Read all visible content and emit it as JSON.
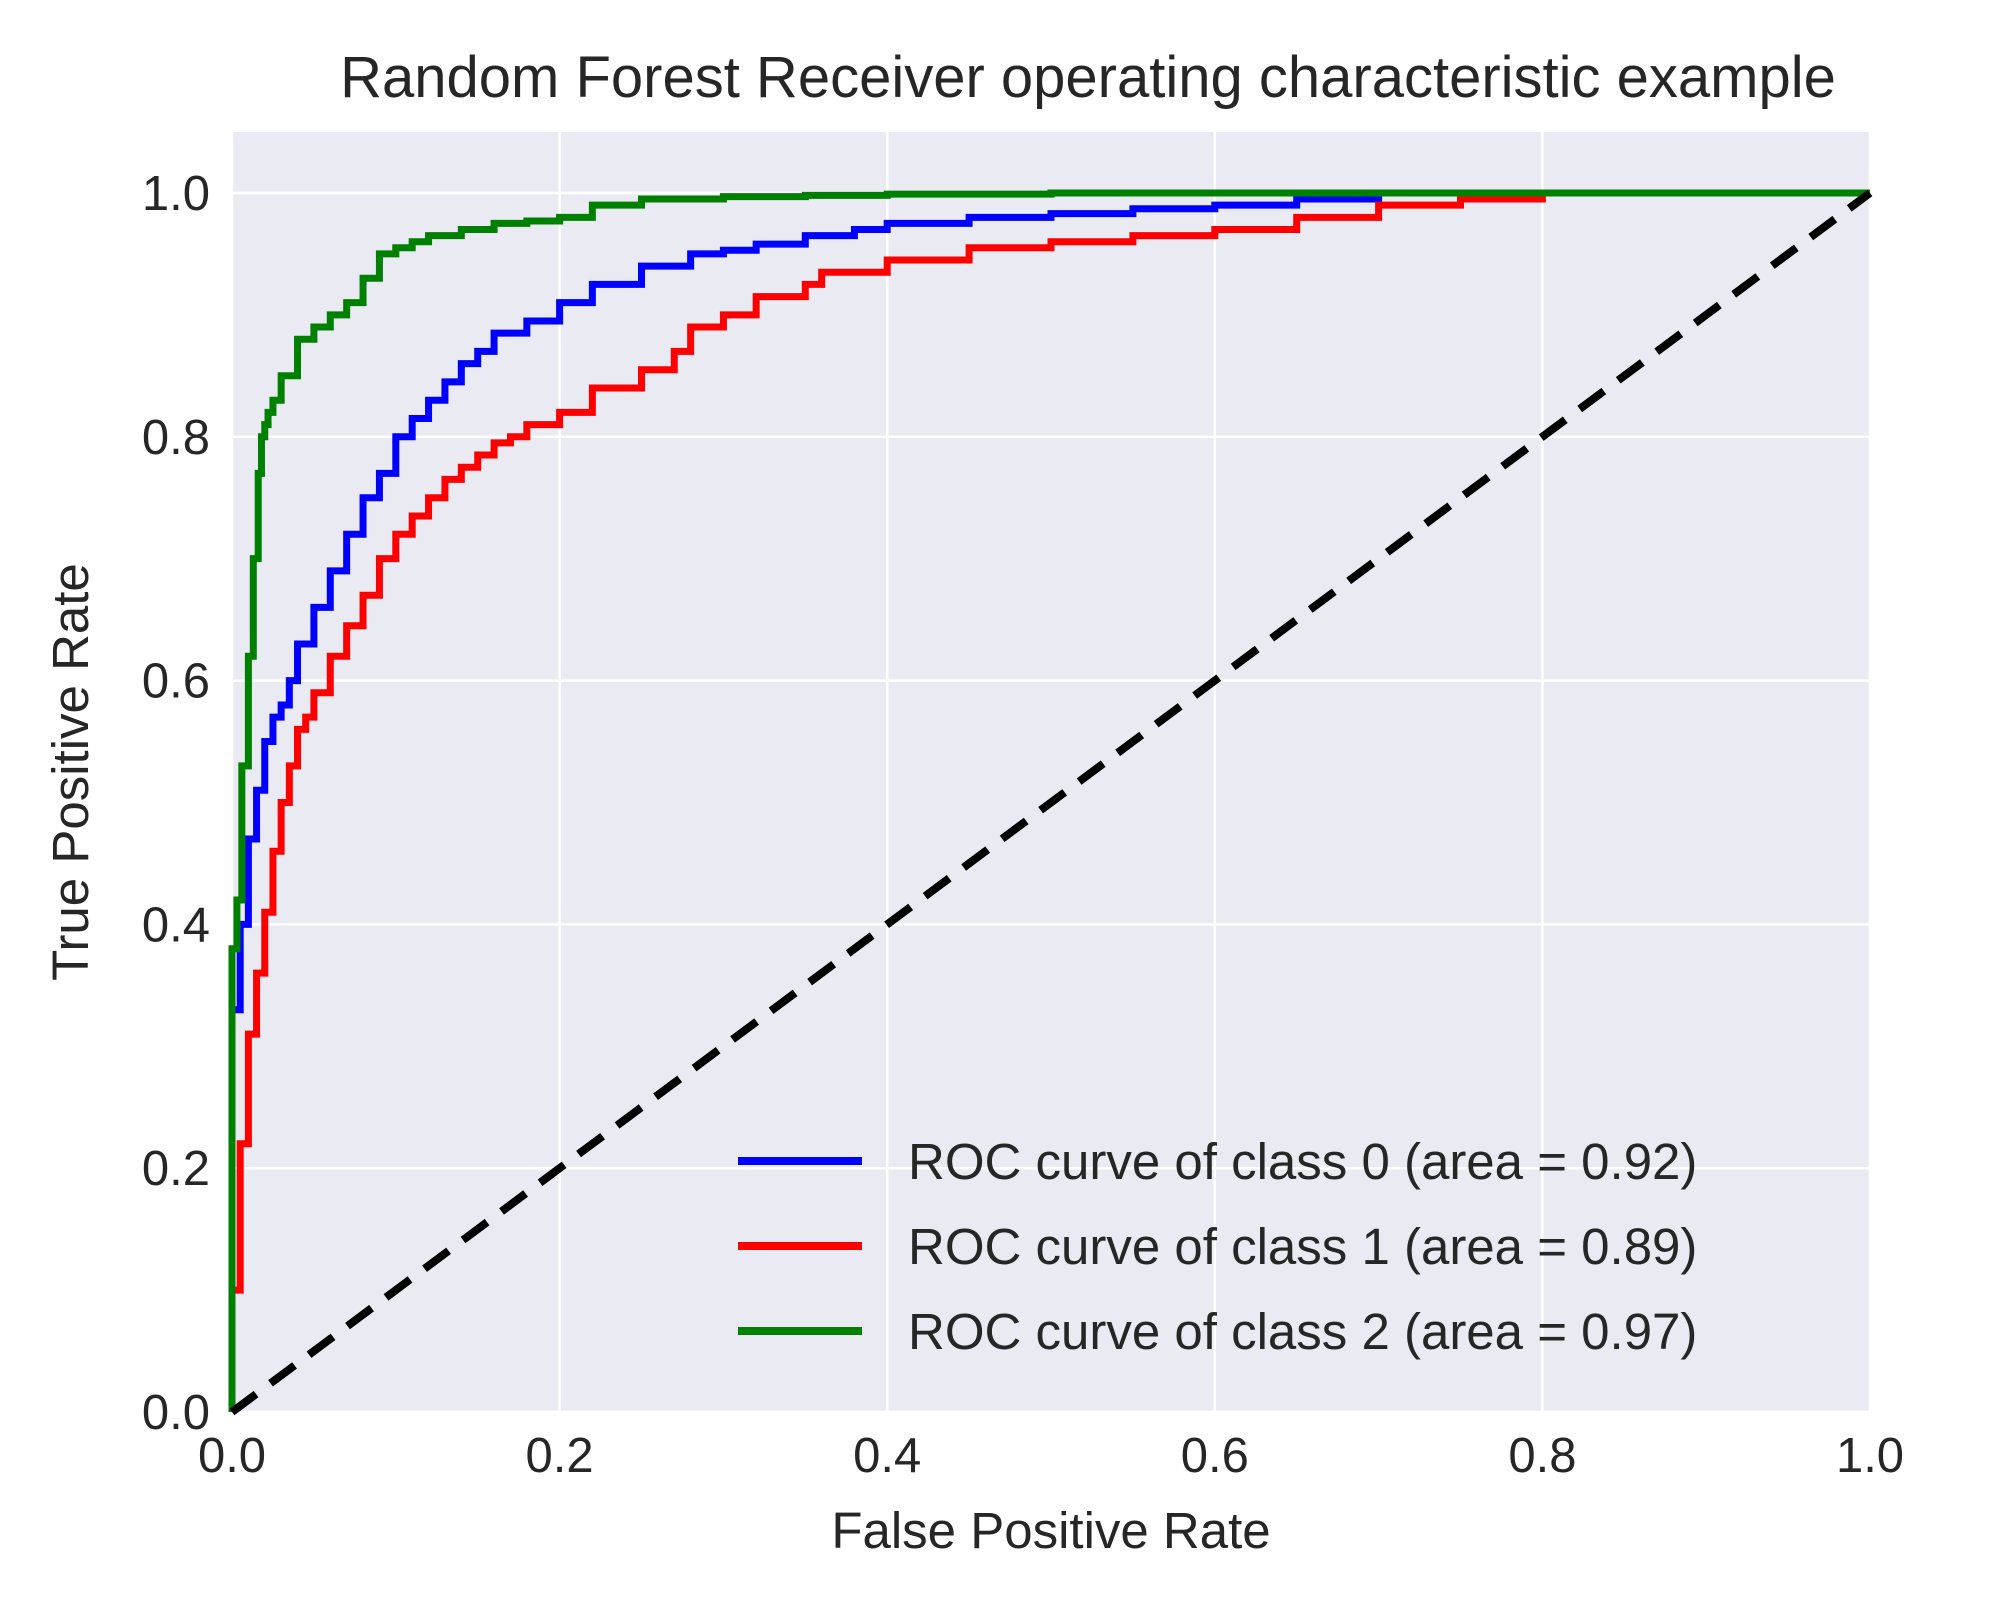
{
  "chart_data": {
    "type": "line",
    "title": "Random Forest Receiver operating characteristic example",
    "xlabel": "False Positive Rate",
    "ylabel": "True Positive Rate",
    "xlim": [
      0.0,
      1.0
    ],
    "ylim": [
      0.0,
      1.05
    ],
    "grid": true,
    "legend_position": "lower-right",
    "xticks": [
      0.0,
      0.2,
      0.4,
      0.6,
      0.8,
      1.0
    ],
    "xtick_labels": [
      "0.0",
      "0.2",
      "0.4",
      "0.6",
      "0.8",
      "1.0"
    ],
    "yticks": [
      0.0,
      0.2,
      0.4,
      0.6,
      0.8,
      1.0
    ],
    "ytick_labels": [
      "0.0",
      "0.2",
      "0.4",
      "0.6",
      "0.8",
      "1.0"
    ],
    "series": [
      {
        "name": "ROC curve of class 0 (area = 0.92)",
        "color": "#0000ff",
        "x": [
          0.0,
          0.0,
          0.005,
          0.01,
          0.015,
          0.02,
          0.025,
          0.03,
          0.035,
          0.04,
          0.05,
          0.06,
          0.07,
          0.08,
          0.09,
          0.1,
          0.11,
          0.12,
          0.13,
          0.14,
          0.15,
          0.16,
          0.18,
          0.2,
          0.22,
          0.25,
          0.28,
          0.3,
          0.32,
          0.35,
          0.38,
          0.4,
          0.45,
          0.5,
          0.55,
          0.6,
          0.65,
          0.7,
          0.75,
          0.8,
          0.9,
          1.0
        ],
        "y": [
          0.0,
          0.25,
          0.33,
          0.4,
          0.47,
          0.51,
          0.55,
          0.57,
          0.58,
          0.6,
          0.63,
          0.66,
          0.69,
          0.72,
          0.75,
          0.77,
          0.8,
          0.815,
          0.83,
          0.845,
          0.86,
          0.87,
          0.885,
          0.895,
          0.91,
          0.925,
          0.94,
          0.95,
          0.953,
          0.958,
          0.965,
          0.97,
          0.975,
          0.98,
          0.983,
          0.987,
          0.99,
          0.995,
          1.0,
          1.0,
          1.0,
          1.0
        ]
      },
      {
        "name": "ROC curve of class 1 (area = 0.89)",
        "color": "#ff0000",
        "x": [
          0.0,
          0.005,
          0.01,
          0.015,
          0.02,
          0.025,
          0.03,
          0.035,
          0.04,
          0.045,
          0.05,
          0.06,
          0.07,
          0.08,
          0.09,
          0.1,
          0.11,
          0.12,
          0.13,
          0.14,
          0.15,
          0.16,
          0.17,
          0.18,
          0.2,
          0.22,
          0.25,
          0.27,
          0.28,
          0.3,
          0.32,
          0.35,
          0.36,
          0.4,
          0.45,
          0.5,
          0.55,
          0.6,
          0.65,
          0.7,
          0.75,
          0.8,
          0.9,
          1.0
        ],
        "y": [
          0.0,
          0.1,
          0.22,
          0.31,
          0.36,
          0.41,
          0.46,
          0.5,
          0.53,
          0.56,
          0.57,
          0.59,
          0.62,
          0.645,
          0.67,
          0.7,
          0.72,
          0.735,
          0.75,
          0.765,
          0.775,
          0.785,
          0.795,
          0.8,
          0.81,
          0.82,
          0.84,
          0.855,
          0.87,
          0.89,
          0.9,
          0.915,
          0.925,
          0.935,
          0.945,
          0.955,
          0.96,
          0.965,
          0.97,
          0.98,
          0.99,
          0.995,
          1.0,
          1.0
        ]
      },
      {
        "name": "ROC curve of class 2 (area = 0.97)",
        "color": "#008000",
        "x": [
          0.0,
          0.0,
          0.003,
          0.006,
          0.01,
          0.013,
          0.016,
          0.018,
          0.02,
          0.022,
          0.025,
          0.03,
          0.04,
          0.05,
          0.06,
          0.07,
          0.08,
          0.09,
          0.1,
          0.11,
          0.12,
          0.14,
          0.16,
          0.18,
          0.2,
          0.22,
          0.25,
          0.3,
          0.35,
          0.4,
          0.5,
          0.6,
          0.7,
          0.8,
          0.9,
          1.0
        ],
        "y": [
          0.0,
          0.34,
          0.38,
          0.42,
          0.53,
          0.62,
          0.7,
          0.77,
          0.8,
          0.81,
          0.82,
          0.83,
          0.85,
          0.88,
          0.89,
          0.9,
          0.91,
          0.93,
          0.95,
          0.955,
          0.96,
          0.965,
          0.97,
          0.975,
          0.977,
          0.98,
          0.99,
          0.995,
          0.997,
          0.998,
          0.999,
          1.0,
          1.0,
          1.0,
          1.0,
          1.0
        ]
      }
    ],
    "reference_line": {
      "name": "chance diagonal",
      "color": "#000000",
      "style": "dashed",
      "x": [
        0.0,
        1.0
      ],
      "y": [
        0.0,
        1.0
      ]
    }
  }
}
